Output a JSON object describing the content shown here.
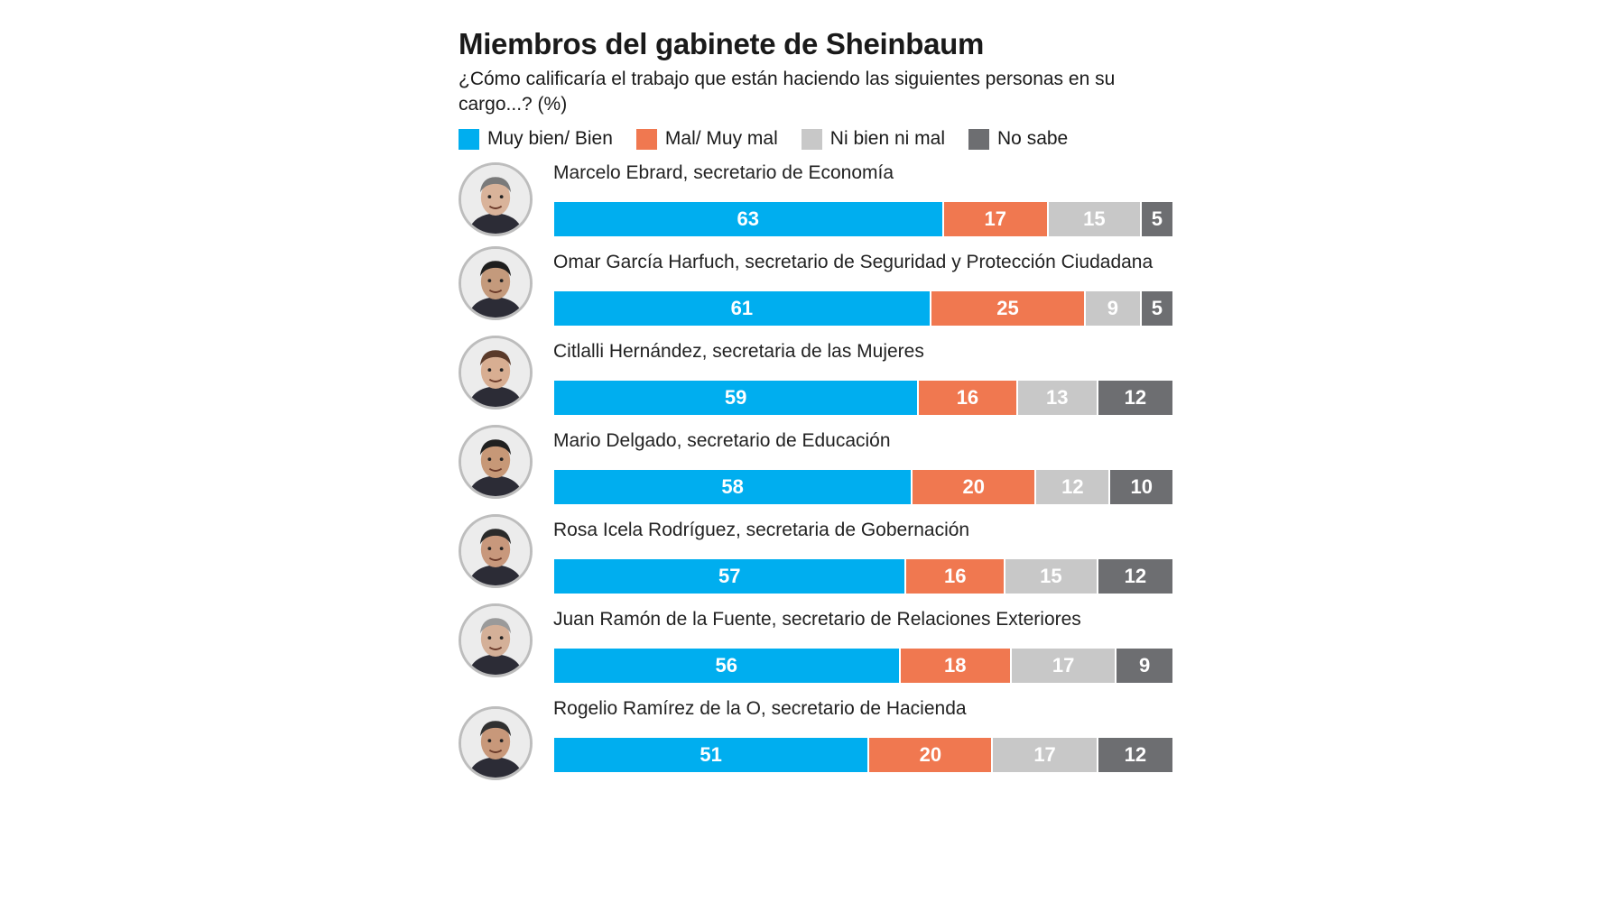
{
  "chart_data": {
    "type": "bar",
    "orientation": "horizontal-stacked",
    "title": "Miembros del gabinete de Sheinbaum",
    "subtitle": "¿Cómo calificaría el trabajo que están haciendo las siguientes personas en su cargo...? (%)",
    "xlabel": "",
    "ylabel": "",
    "xlim": [
      0,
      100
    ],
    "grid": false,
    "legend_position": "top-left",
    "categories": [
      "Marcelo Ebrard, secretario de Economía",
      "Omar García Harfuch, secretario de Seguridad y Protección Ciudadana",
      "Citlalli Hernández, secretaria de las Mujeres",
      "Mario Delgado, secretario de Educación",
      "Rosa Icela Rodríguez, secretaria de Gobernación",
      "Juan Ramón de la Fuente, secretario de Relaciones Exteriores",
      "Rogelio Ramírez de la O, secretario de Hacienda"
    ],
    "series": [
      {
        "name": "Muy bien/ Bien",
        "color": "#00AEEF",
        "values": [
          63,
          61,
          59,
          58,
          57,
          56,
          51
        ]
      },
      {
        "name": "Mal/ Muy mal",
        "color": "#F07850",
        "values": [
          17,
          25,
          16,
          20,
          16,
          18,
          20
        ]
      },
      {
        "name": "Ni bien ni mal",
        "color": "#C8C8C8",
        "values": [
          15,
          9,
          13,
          12,
          15,
          17,
          17
        ]
      },
      {
        "name": "No sabe",
        "color": "#6D6E71",
        "values": [
          5,
          5,
          12,
          10,
          12,
          9,
          12
        ]
      }
    ]
  }
}
